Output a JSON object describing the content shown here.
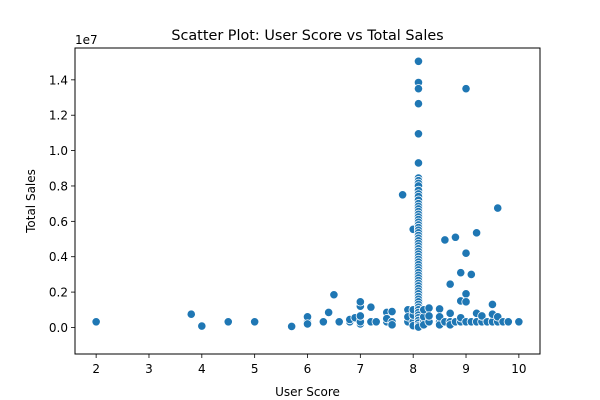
{
  "chart_data": {
    "type": "scatter",
    "title": "Scatter Plot: User Score vs Total Sales",
    "xlabel": "User Score",
    "ylabel": "Total Sales",
    "y_offset_text": "1e7",
    "xlim": [
      1.6,
      10.4
    ],
    "ylim": [
      -1500000,
      15800000
    ],
    "x_ticks": [
      2,
      3,
      4,
      5,
      6,
      7,
      8,
      9,
      10
    ],
    "x_tick_labels": [
      "2",
      "3",
      "4",
      "5",
      "6",
      "7",
      "8",
      "9",
      "10"
    ],
    "y_ticks": [
      0,
      2000000,
      4000000,
      6000000,
      8000000,
      10000000,
      12000000,
      14000000
    ],
    "y_tick_labels": [
      "0.0",
      "0.2",
      "0.4",
      "0.6",
      "0.8",
      "1.0",
      "1.2",
      "1.4"
    ],
    "grid": false,
    "marker_color": "#1f77b4",
    "marker_edge_color": "#ffffff",
    "series": [
      {
        "points": [
          [
            2.0,
            320000
          ],
          [
            3.8,
            750000
          ],
          [
            4.0,
            80000
          ],
          [
            4.5,
            320000
          ],
          [
            5.0,
            320000
          ],
          [
            5.7,
            60000
          ],
          [
            6.0,
            320000
          ],
          [
            6.0,
            600000
          ],
          [
            6.0,
            200000
          ],
          [
            6.3,
            320000
          ],
          [
            6.4,
            850000
          ],
          [
            6.5,
            1850000
          ],
          [
            6.6,
            320000
          ],
          [
            6.8,
            320000
          ],
          [
            6.8,
            450000
          ],
          [
            6.9,
            550000
          ],
          [
            7.0,
            200000
          ],
          [
            7.0,
            320000
          ],
          [
            7.0,
            1200000
          ],
          [
            7.0,
            1450000
          ],
          [
            7.0,
            650000
          ],
          [
            7.2,
            320000
          ],
          [
            7.2,
            1150000
          ],
          [
            7.3,
            320000
          ],
          [
            7.5,
            320000
          ],
          [
            7.5,
            850000
          ],
          [
            7.5,
            500000
          ],
          [
            7.6,
            320000
          ],
          [
            7.6,
            150000
          ],
          [
            7.6,
            900000
          ],
          [
            7.8,
            7500000
          ],
          [
            7.9,
            320000
          ],
          [
            7.9,
            1000000
          ],
          [
            7.9,
            600000
          ],
          [
            8.0,
            5550000
          ],
          [
            8.0,
            320000
          ],
          [
            8.0,
            700000
          ],
          [
            8.0,
            1000000
          ],
          [
            8.0,
            100000
          ],
          [
            8.1,
            15050000
          ],
          [
            8.1,
            13850000
          ],
          [
            8.1,
            13500000
          ],
          [
            8.1,
            12650000
          ],
          [
            8.1,
            10950000
          ],
          [
            8.1,
            9300000
          ],
          [
            8.1,
            8450000
          ],
          [
            8.1,
            8300000
          ],
          [
            8.1,
            8150000
          ],
          [
            8.1,
            8000000
          ],
          [
            8.1,
            7750000
          ],
          [
            8.1,
            7550000
          ],
          [
            8.1,
            7400000
          ],
          [
            8.1,
            7200000
          ],
          [
            8.1,
            7000000
          ],
          [
            8.1,
            6850000
          ],
          [
            8.1,
            6700000
          ],
          [
            8.1,
            6550000
          ],
          [
            8.1,
            6400000
          ],
          [
            8.1,
            6250000
          ],
          [
            8.1,
            6100000
          ],
          [
            8.1,
            5950000
          ],
          [
            8.1,
            5800000
          ],
          [
            8.1,
            5650000
          ],
          [
            8.1,
            5500000
          ],
          [
            8.1,
            5350000
          ],
          [
            8.1,
            5200000
          ],
          [
            8.1,
            5050000
          ],
          [
            8.1,
            4900000
          ],
          [
            8.1,
            4750000
          ],
          [
            8.1,
            4600000
          ],
          [
            8.1,
            4450000
          ],
          [
            8.1,
            4300000
          ],
          [
            8.1,
            4150000
          ],
          [
            8.1,
            4000000
          ],
          [
            8.1,
            3850000
          ],
          [
            8.1,
            3700000
          ],
          [
            8.1,
            3550000
          ],
          [
            8.1,
            3400000
          ],
          [
            8.1,
            3250000
          ],
          [
            8.1,
            3100000
          ],
          [
            8.1,
            2950000
          ],
          [
            8.1,
            2800000
          ],
          [
            8.1,
            2650000
          ],
          [
            8.1,
            2500000
          ],
          [
            8.1,
            2350000
          ],
          [
            8.1,
            2200000
          ],
          [
            8.1,
            2050000
          ],
          [
            8.1,
            1900000
          ],
          [
            8.1,
            1750000
          ],
          [
            8.1,
            1600000
          ],
          [
            8.1,
            1450000
          ],
          [
            8.1,
            1300000
          ],
          [
            8.1,
            1150000
          ],
          [
            8.1,
            1000000
          ],
          [
            8.1,
            850000
          ],
          [
            8.1,
            700000
          ],
          [
            8.1,
            550000
          ],
          [
            8.1,
            400000
          ],
          [
            8.1,
            250000
          ],
          [
            8.1,
            100000
          ],
          [
            8.1,
            20000
          ],
          [
            8.2,
            320000
          ],
          [
            8.2,
            600000
          ],
          [
            8.2,
            1000000
          ],
          [
            8.2,
            150000
          ],
          [
            8.3,
            320000
          ],
          [
            8.3,
            1100000
          ],
          [
            8.3,
            650000
          ],
          [
            8.5,
            320000
          ],
          [
            8.5,
            1050000
          ],
          [
            8.5,
            150000
          ],
          [
            8.5,
            600000
          ],
          [
            8.6,
            4950000
          ],
          [
            8.6,
            320000
          ],
          [
            8.7,
            2450000
          ],
          [
            8.7,
            320000
          ],
          [
            8.7,
            800000
          ],
          [
            8.7,
            150000
          ],
          [
            8.8,
            5100000
          ],
          [
            8.8,
            320000
          ],
          [
            8.9,
            1500000
          ],
          [
            8.9,
            3100000
          ],
          [
            8.9,
            320000
          ],
          [
            8.9,
            550000
          ],
          [
            9.0,
            13500000
          ],
          [
            9.0,
            4200000
          ],
          [
            9.0,
            1900000
          ],
          [
            9.0,
            320000
          ],
          [
            9.0,
            1450000
          ],
          [
            9.1,
            3000000
          ],
          [
            9.1,
            320000
          ],
          [
            9.2,
            5350000
          ],
          [
            9.2,
            320000
          ],
          [
            9.2,
            800000
          ],
          [
            9.3,
            320000
          ],
          [
            9.3,
            650000
          ],
          [
            9.4,
            320000
          ],
          [
            9.5,
            1300000
          ],
          [
            9.5,
            320000
          ],
          [
            9.5,
            750000
          ],
          [
            9.6,
            6750000
          ],
          [
            9.6,
            320000
          ],
          [
            9.6,
            600000
          ],
          [
            9.7,
            320000
          ],
          [
            9.8,
            320000
          ],
          [
            10.0,
            320000
          ]
        ]
      }
    ]
  }
}
